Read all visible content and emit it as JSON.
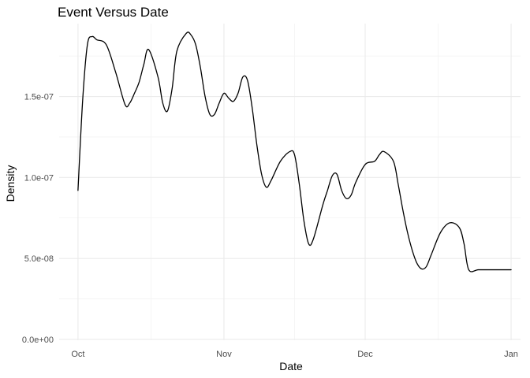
{
  "chart_data": {
    "type": "line",
    "title": "Event Versus Date",
    "xlabel": "Date",
    "ylabel": "Density",
    "grid": true,
    "x_ticks": [
      {
        "date": "2023-10-01",
        "label": "Oct"
      },
      {
        "date": "2023-11-01",
        "label": "Nov"
      },
      {
        "date": "2023-12-01",
        "label": "Dec"
      },
      {
        "date": "2024-01-01",
        "label": "Jan"
      }
    ],
    "y_ticks": [
      {
        "value": 0,
        "label": "0.0e+00"
      },
      {
        "value": 5e-08,
        "label": "5.0e-08"
      },
      {
        "value": 1e-07,
        "label": "1.0e-07"
      },
      {
        "value": 1.5e-07,
        "label": "1.5e-07"
      }
    ],
    "xlim": [
      "2023-09-27",
      "2024-01-03"
    ],
    "ylim": [
      -5e-10,
      1.95e-07
    ],
    "series": [
      {
        "color": "#000000",
        "x": [
          "2023-10-01",
          "2023-10-02",
          "2023-10-03",
          "2023-10-04",
          "2023-10-05",
          "2023-10-07",
          "2023-10-09",
          "2023-10-11",
          "2023-10-12",
          "2023-10-13",
          "2023-10-14",
          "2023-10-15",
          "2023-10-16",
          "2023-10-18",
          "2023-10-19",
          "2023-10-20",
          "2023-10-21",
          "2023-10-22",
          "2023-10-24",
          "2023-10-25",
          "2023-10-26",
          "2023-10-27",
          "2023-10-28",
          "2023-10-29",
          "2023-10-30",
          "2023-10-31",
          "2023-11-01",
          "2023-11-02",
          "2023-11-03",
          "2023-11-04",
          "2023-11-05",
          "2023-11-06",
          "2023-11-07",
          "2023-11-08",
          "2023-11-09",
          "2023-11-10",
          "2023-11-11",
          "2023-11-13",
          "2023-11-15",
          "2023-11-16",
          "2023-11-17",
          "2023-11-18",
          "2023-11-19",
          "2023-11-20",
          "2023-11-22",
          "2023-11-23",
          "2023-11-24",
          "2023-11-25",
          "2023-11-26",
          "2023-11-27",
          "2023-11-28",
          "2023-11-29",
          "2023-12-01",
          "2023-12-03",
          "2023-12-04",
          "2023-12-05",
          "2023-12-07",
          "2023-12-08",
          "2023-12-09",
          "2023-12-10",
          "2023-12-11",
          "2023-12-12",
          "2023-12-13",
          "2023-12-14",
          "2023-12-15",
          "2023-12-17",
          "2023-12-19",
          "2023-12-21",
          "2023-12-22",
          "2023-12-23",
          "2023-12-25",
          "2023-12-27",
          "2023-12-28",
          "2023-12-29",
          "2023-12-30",
          "2024-01-01"
        ],
        "y": [
          9.2e-08,
          1.48e-07,
          1.82e-07,
          1.87e-07,
          1.85e-07,
          1.82e-07,
          1.65e-07,
          1.45e-07,
          1.46e-07,
          1.52e-07,
          1.59e-07,
          1.7e-07,
          1.79e-07,
          1.62e-07,
          1.46e-07,
          1.41e-07,
          1.55e-07,
          1.78e-07,
          1.89e-07,
          1.88e-07,
          1.82e-07,
          1.68e-07,
          1.5e-07,
          1.39e-07,
          1.39e-07,
          1.46e-07,
          1.52e-07,
          1.49e-07,
          1.47e-07,
          1.52e-07,
          1.62e-07,
          1.6e-07,
          1.43e-07,
          1.2e-07,
          1.02e-07,
          9.4e-08,
          9.8e-08,
          1.1e-07,
          1.16e-07,
          1.14e-07,
          9.6e-08,
          7.3e-08,
          5.9e-08,
          6.2e-08,
          8.3e-08,
          9.2e-08,
          1.01e-07,
          1.02e-07,
          9.2e-08,
          8.7e-08,
          8.9e-08,
          9.7e-08,
          1.08e-07,
          1.1e-07,
          1.14e-07,
          1.16e-07,
          1.1e-07,
          9.6e-08,
          8e-08,
          6.6e-08,
          5.5e-08,
          4.7e-08,
          4.35e-08,
          4.5e-08,
          5.2e-08,
          6.6e-08,
          7.2e-08,
          6.9e-08,
          5.9e-08,
          4.3e-08,
          4.3e-08,
          4.3e-08,
          4.3e-08,
          4.3e-08,
          4.3e-08,
          4.3e-08
        ]
      }
    ]
  }
}
